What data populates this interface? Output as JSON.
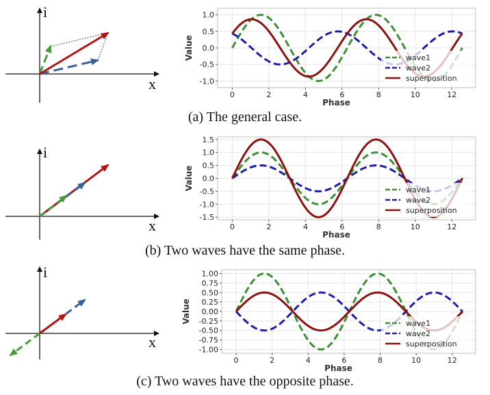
{
  "figure": {
    "captions": [
      "(a) The general case.",
      "(b) Two waves have the same phase.",
      "(c) Two waves have the opposite phase."
    ],
    "diagram_labels": {
      "imag_axis": "i",
      "real_axis": "x"
    },
    "colors": {
      "wave1": "#3a8f34",
      "wave2": "#1c1ca6",
      "superposition": "#8b1010",
      "diagram_wave2": "#3a5f94"
    }
  },
  "chart_data": [
    {
      "type": "line",
      "title": "",
      "xlabel": "Phase",
      "ylabel": "Value",
      "xlim": [
        -0.8,
        13.3
      ],
      "ylim": [
        -1.2,
        1.2
      ],
      "xticks": [
        "0",
        "2",
        "4",
        "6",
        "8",
        "10",
        "12"
      ],
      "yticks": [
        "1.0",
        "0.5",
        "0.0",
        "-0.5",
        "-1.0"
      ],
      "ytick_values": [
        1.0,
        0.5,
        0.0,
        -0.5,
        -1.0
      ],
      "x_range": [
        0,
        12.57
      ],
      "series": [
        {
          "name": "wave1",
          "style": "dashed",
          "function": "sin",
          "amplitude": 1.0,
          "phase": 0.0
        },
        {
          "name": "wave2",
          "style": "dashed",
          "function": "sin",
          "amplitude": 0.5,
          "phase": 2.094
        },
        {
          "name": "superposition",
          "style": "solid",
          "function": "sum of wave1 and wave2"
        }
      ],
      "legend": [
        "wave1",
        "wave2",
        "superposition"
      ],
      "legend_position": "lower-right",
      "grid": true
    },
    {
      "type": "line",
      "title": "",
      "xlabel": "Phase",
      "ylabel": "Value",
      "xlim": [
        -0.8,
        13.3
      ],
      "ylim": [
        -1.6,
        1.6
      ],
      "xticks": [
        "0",
        "2",
        "4",
        "6",
        "8",
        "10",
        "12"
      ],
      "yticks": [
        "1.5",
        "1.0",
        "0.5",
        "0.0",
        "-0.5",
        "-1.0",
        "-1.5"
      ],
      "ytick_values": [
        1.5,
        1.0,
        0.5,
        0.0,
        -0.5,
        -1.0,
        -1.5
      ],
      "x_range": [
        0,
        12.57
      ],
      "series": [
        {
          "name": "wave1",
          "style": "dashed",
          "function": "sin",
          "amplitude": 1.0,
          "phase": 0.0
        },
        {
          "name": "wave2",
          "style": "dashed",
          "function": "sin",
          "amplitude": 0.5,
          "phase": 0.0
        },
        {
          "name": "superposition",
          "style": "solid",
          "function": "sum of wave1 and wave2"
        }
      ],
      "legend": [
        "wave1",
        "wave2",
        "superposition"
      ],
      "legend_position": "lower-right",
      "grid": true
    },
    {
      "type": "line",
      "title": "",
      "xlabel": "Phase",
      "ylabel": "Value",
      "xlim": [
        -0.8,
        13.3
      ],
      "ylim": [
        -1.1,
        1.1
      ],
      "xticks": [
        "0",
        "2",
        "4",
        "6",
        "8",
        "10",
        "12"
      ],
      "yticks": [
        "1.00",
        "0.75",
        "0.50",
        "0.25",
        "0.00",
        "-0.25",
        "-0.50",
        "-0.75",
        "-1.00"
      ],
      "ytick_values": [
        1.0,
        0.75,
        0.5,
        0.25,
        0.0,
        -0.25,
        -0.5,
        -0.75,
        -1.0
      ],
      "x_range": [
        0,
        12.57
      ],
      "series": [
        {
          "name": "wave1",
          "style": "dashed",
          "function": "sin",
          "amplitude": 1.0,
          "phase": 0.0
        },
        {
          "name": "wave2",
          "style": "dashed",
          "function": "sin",
          "amplitude": 0.5,
          "phase": 3.1416
        },
        {
          "name": "superposition",
          "style": "solid",
          "function": "sum of wave1 and wave2"
        }
      ],
      "legend": [
        "wave1",
        "wave2",
        "superposition"
      ],
      "legend_position": "lower-right",
      "grid": true
    }
  ]
}
